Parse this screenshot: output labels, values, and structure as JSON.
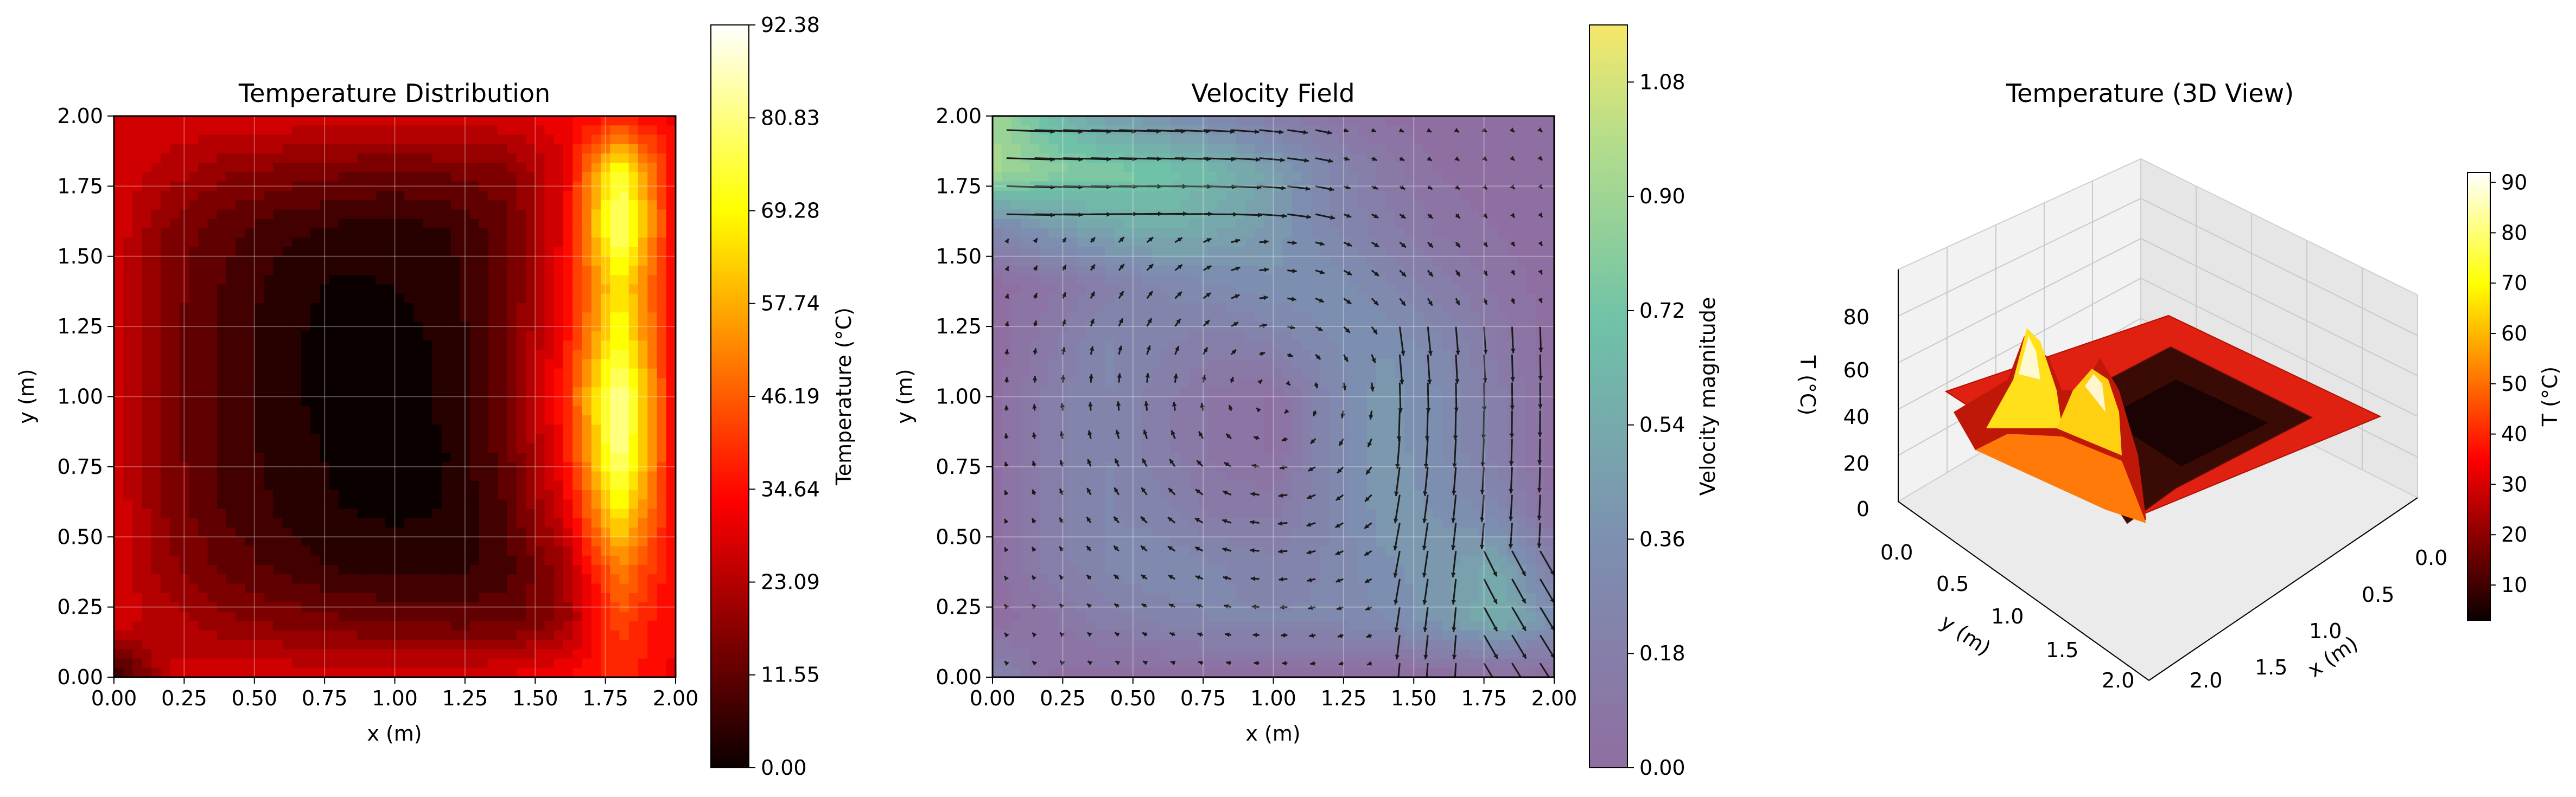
{
  "chart_data": [
    {
      "type": "heatmap",
      "subtype": "filled-contour",
      "title": "Temperature Distribution",
      "xlabel": "x (m)",
      "ylabel": "y (m)",
      "xlim": [
        0,
        2
      ],
      "ylim": [
        0,
        2
      ],
      "xticks": [
        "0.00",
        "0.25",
        "0.50",
        "0.75",
        "1.00",
        "1.25",
        "1.50",
        "1.75",
        "2.00"
      ],
      "yticks": [
        "0.00",
        "0.25",
        "0.50",
        "0.75",
        "1.00",
        "1.25",
        "1.50",
        "1.75",
        "2.00"
      ],
      "grid": true,
      "colormap": "hot",
      "colorbar": {
        "label": "Temperature (°C)",
        "range": [
          0,
          92.38
        ],
        "ticks": [
          "0.00",
          "11.55",
          "23.09",
          "34.64",
          "46.19",
          "57.74",
          "69.28",
          "80.83",
          "92.38"
        ]
      },
      "field": {
        "description": "T(x,y) sampled on an 11x11 grid, x and y from 0 to 2 m",
        "x": [
          0,
          0.2,
          0.4,
          0.6,
          0.8,
          1.0,
          1.2,
          1.4,
          1.6,
          1.8,
          2.0
        ],
        "y": [
          0,
          0.2,
          0.4,
          0.6,
          0.8,
          1.0,
          1.2,
          1.4,
          1.6,
          1.8,
          2.0
        ],
        "values": [
          [
            5,
            28,
            30,
            30,
            30,
            30,
            30,
            32,
            35,
            40,
            34
          ],
          [
            30,
            25,
            20,
            18,
            16,
            15,
            14,
            14,
            20,
            45,
            34
          ],
          [
            30,
            20,
            14,
            10,
            7,
            6,
            6,
            10,
            22,
            55,
            34
          ],
          [
            30,
            18,
            11,
            7,
            4,
            3,
            4,
            12,
            30,
            72,
            34
          ],
          [
            30,
            17,
            10,
            6,
            3,
            2,
            4,
            14,
            35,
            85,
            34
          ],
          [
            30,
            17,
            10,
            5,
            2,
            2,
            5,
            15,
            38,
            88,
            34
          ],
          [
            30,
            17,
            10,
            5,
            2,
            2,
            5,
            15,
            35,
            75,
            34
          ],
          [
            30,
            17,
            11,
            6,
            3,
            4,
            6,
            14,
            33,
            70,
            34
          ],
          [
            30,
            18,
            13,
            9,
            7,
            6,
            8,
            14,
            32,
            85,
            34
          ],
          [
            30,
            25,
            20,
            18,
            16,
            15,
            16,
            18,
            30,
            78,
            34
          ],
          [
            30,
            30,
            30,
            30,
            30,
            30,
            30,
            30,
            33,
            38,
            34
          ]
        ]
      }
    },
    {
      "type": "heatmap",
      "subtype": "filled-contour-with-quiver",
      "title": "Velocity Field",
      "xlabel": "x (m)",
      "ylabel": "y (m)",
      "xlim": [
        0,
        2
      ],
      "ylim": [
        0,
        2
      ],
      "xticks": [
        "0.00",
        "0.25",
        "0.50",
        "0.75",
        "1.00",
        "1.25",
        "1.50",
        "1.75",
        "2.00"
      ],
      "yticks": [
        "0.00",
        "0.25",
        "0.50",
        "0.75",
        "1.00",
        "1.25",
        "1.50",
        "1.75",
        "2.00"
      ],
      "grid": true,
      "colormap": "viridis",
      "colorbar": {
        "label": "Velocity magnitude",
        "range": [
          0,
          1.17
        ],
        "ticks": [
          "0.00",
          "0.18",
          "0.36",
          "0.54",
          "0.72",
          "0.90",
          "1.08"
        ]
      },
      "field": {
        "description": "velocity magnitude sampled on an 11x11 grid, x and y from 0 to 2 m",
        "values": [
          [
            0.3,
            0.05,
            0.02,
            0.02,
            0.02,
            0.02,
            0.02,
            0.02,
            0.02,
            0.02,
            0.02
          ],
          [
            0.02,
            0.1,
            0.2,
            0.25,
            0.3,
            0.3,
            0.3,
            0.35,
            0.45,
            0.6,
            0.4
          ],
          [
            0.02,
            0.2,
            0.3,
            0.35,
            0.3,
            0.25,
            0.3,
            0.4,
            0.45,
            0.55,
            0.2
          ],
          [
            0.02,
            0.2,
            0.3,
            0.25,
            0.15,
            0.15,
            0.3,
            0.45,
            0.4,
            0.3,
            0.05
          ],
          [
            0.02,
            0.2,
            0.3,
            0.2,
            0.1,
            0.05,
            0.3,
            0.45,
            0.35,
            0.2,
            0.02
          ],
          [
            0.02,
            0.2,
            0.3,
            0.2,
            0.1,
            0.05,
            0.3,
            0.45,
            0.35,
            0.2,
            0.02
          ],
          [
            0.02,
            0.15,
            0.3,
            0.25,
            0.2,
            0.25,
            0.35,
            0.4,
            0.3,
            0.15,
            0.02
          ],
          [
            0.02,
            0.1,
            0.2,
            0.3,
            0.35,
            0.4,
            0.4,
            0.3,
            0.2,
            0.1,
            0.02
          ],
          [
            0.3,
            0.45,
            0.55,
            0.6,
            0.55,
            0.45,
            0.3,
            0.2,
            0.1,
            0.05,
            0.02
          ],
          [
            0.95,
            0.85,
            0.8,
            0.75,
            0.65,
            0.5,
            0.3,
            0.15,
            0.05,
            0.02,
            0.02
          ],
          [
            0.95,
            0.7,
            0.5,
            0.4,
            0.3,
            0.2,
            0.1,
            0.05,
            0.02,
            0.02,
            0.02
          ]
        ]
      },
      "quiver": {
        "description": "arrow directions: clockwise-style recirculation centred near (1.0, 1.0); strong rightward jet along the top-left, strong downward/right flow near the lower right"
      }
    },
    {
      "type": "surface",
      "title": "Temperature (3D View)",
      "xlabel": "x (m)",
      "ylabel": "y (m)",
      "zlabel": "T (°C)",
      "xticks": [
        "0.0",
        "0.5",
        "1.0",
        "1.5",
        "2.0"
      ],
      "yticks": [
        "0.0",
        "0.5",
        "1.0",
        "1.5",
        "2.0"
      ],
      "zticks": [
        "0",
        "20",
        "40",
        "60",
        "80"
      ],
      "colormap": "hot",
      "colorbar": {
        "label": "T (°C)",
        "range": [
          3,
          92
        ],
        "ticks": [
          "10",
          "20",
          "30",
          "40",
          "50",
          "60",
          "70",
          "80",
          "90"
        ]
      }
    }
  ]
}
